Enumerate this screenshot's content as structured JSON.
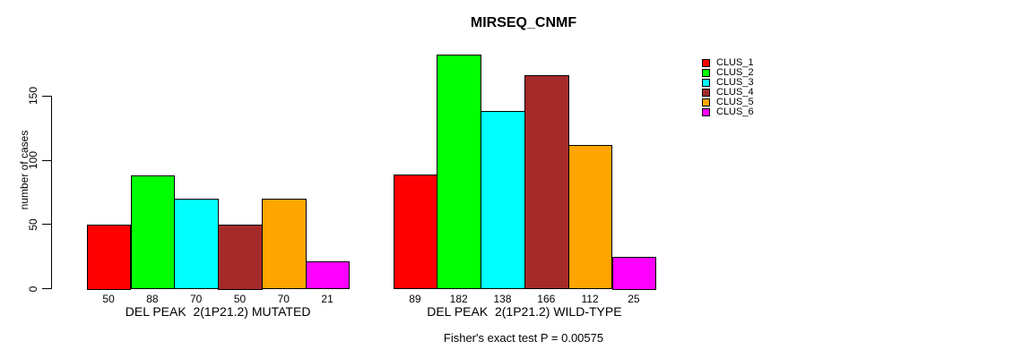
{
  "chart_data": {
    "type": "bar",
    "title": "MIRSEQ_CNMF",
    "ylabel": "number of cases",
    "xlabel": "",
    "ylim": [
      0,
      186
    ],
    "yticks": [
      0,
      50,
      100,
      150
    ],
    "grid": false,
    "legend_position": "right",
    "bar_value_labels": true,
    "categories": [
      "DEL PEAK  2(1P21.2) MUTATED",
      "DEL PEAK  2(1P21.2) WILD-TYPE"
    ],
    "series": [
      {
        "name": "CLUS_1",
        "color": "#FF0000",
        "values": [
          50,
          89
        ]
      },
      {
        "name": "CLUS_2",
        "color": "#00FF00",
        "values": [
          88,
          182
        ]
      },
      {
        "name": "CLUS_3",
        "color": "#00FFFF",
        "values": [
          70,
          138
        ]
      },
      {
        "name": "CLUS_4",
        "color": "#A52A2A",
        "values": [
          50,
          166
        ]
      },
      {
        "name": "CLUS_5",
        "color": "#FFA500",
        "values": [
          70,
          112
        ]
      },
      {
        "name": "CLUS_6",
        "color": "#FF00FF",
        "values": [
          21,
          25
        ]
      }
    ],
    "annotation": "Fisher's exact test P = 0.00575",
    "axis_color": "#000000",
    "background_color": "#FFFFFF"
  }
}
